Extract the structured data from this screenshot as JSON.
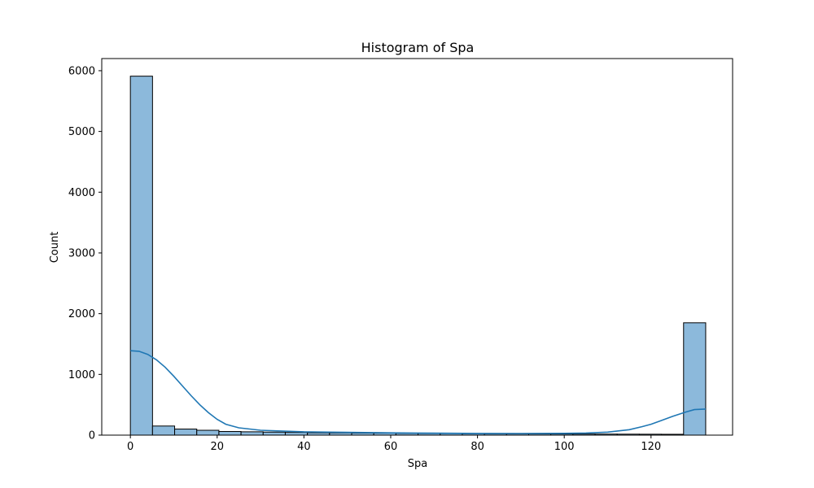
{
  "chart_data": {
    "type": "bar",
    "title": "Histogram of Spa",
    "xlabel": "Spa",
    "ylabel": "Count",
    "xlim": [
      -6.6,
      138.8
    ],
    "ylim": [
      0,
      6200
    ],
    "xticks": [
      0,
      20,
      40,
      60,
      80,
      100,
      120
    ],
    "yticks": [
      0,
      1000,
      2000,
      3000,
      4000,
      5000,
      6000
    ],
    "grid": false,
    "bin_width": 5.1,
    "bins": [
      {
        "x0": 0.0,
        "x1": 5.1,
        "count": 5910
      },
      {
        "x0": 5.1,
        "x1": 10.2,
        "count": 150
      },
      {
        "x0": 10.2,
        "x1": 15.3,
        "count": 100
      },
      {
        "x0": 15.3,
        "x1": 20.4,
        "count": 80
      },
      {
        "x0": 20.4,
        "x1": 25.5,
        "count": 60
      },
      {
        "x0": 25.5,
        "x1": 30.6,
        "count": 55
      },
      {
        "x0": 30.6,
        "x1": 35.7,
        "count": 50
      },
      {
        "x0": 35.7,
        "x1": 40.8,
        "count": 45
      },
      {
        "x0": 40.8,
        "x1": 45.9,
        "count": 40
      },
      {
        "x0": 45.9,
        "x1": 51.0,
        "count": 38
      },
      {
        "x0": 51.0,
        "x1": 56.1,
        "count": 35
      },
      {
        "x0": 56.1,
        "x1": 61.2,
        "count": 33
      },
      {
        "x0": 61.2,
        "x1": 66.3,
        "count": 30
      },
      {
        "x0": 66.3,
        "x1": 71.4,
        "count": 28
      },
      {
        "x0": 71.4,
        "x1": 76.5,
        "count": 26
      },
      {
        "x0": 76.5,
        "x1": 81.6,
        "count": 24
      },
      {
        "x0": 81.6,
        "x1": 86.7,
        "count": 22
      },
      {
        "x0": 86.7,
        "x1": 91.8,
        "count": 21
      },
      {
        "x0": 91.8,
        "x1": 96.9,
        "count": 20
      },
      {
        "x0": 96.9,
        "x1": 102.0,
        "count": 19
      },
      {
        "x0": 102.0,
        "x1": 107.1,
        "count": 18
      },
      {
        "x0": 107.1,
        "x1": 112.2,
        "count": 17
      },
      {
        "x0": 112.2,
        "x1": 117.3,
        "count": 16
      },
      {
        "x0": 117.3,
        "x1": 122.4,
        "count": 15
      },
      {
        "x0": 122.4,
        "x1": 127.5,
        "count": 14
      },
      {
        "x0": 127.5,
        "x1": 132.6,
        "count": 1850
      }
    ],
    "kde": {
      "x": [
        0,
        2,
        4,
        6,
        8,
        10,
        12,
        14,
        16,
        18,
        20,
        22,
        25,
        30,
        40,
        50,
        60,
        70,
        80,
        90,
        100,
        105,
        110,
        115,
        118,
        120,
        122,
        125,
        128,
        130,
        132.6
      ],
      "y": [
        1390,
        1380,
        1330,
        1240,
        1120,
        970,
        810,
        650,
        500,
        370,
        260,
        180,
        120,
        80,
        55,
        45,
        38,
        32,
        28,
        27,
        30,
        35,
        50,
        90,
        140,
        180,
        230,
        310,
        380,
        420,
        430
      ]
    },
    "colors": {
      "bar_fill": "#8cb9db",
      "bar_edge": "#000000",
      "kde_line": "#1f77b4",
      "axes": "#000000"
    }
  }
}
